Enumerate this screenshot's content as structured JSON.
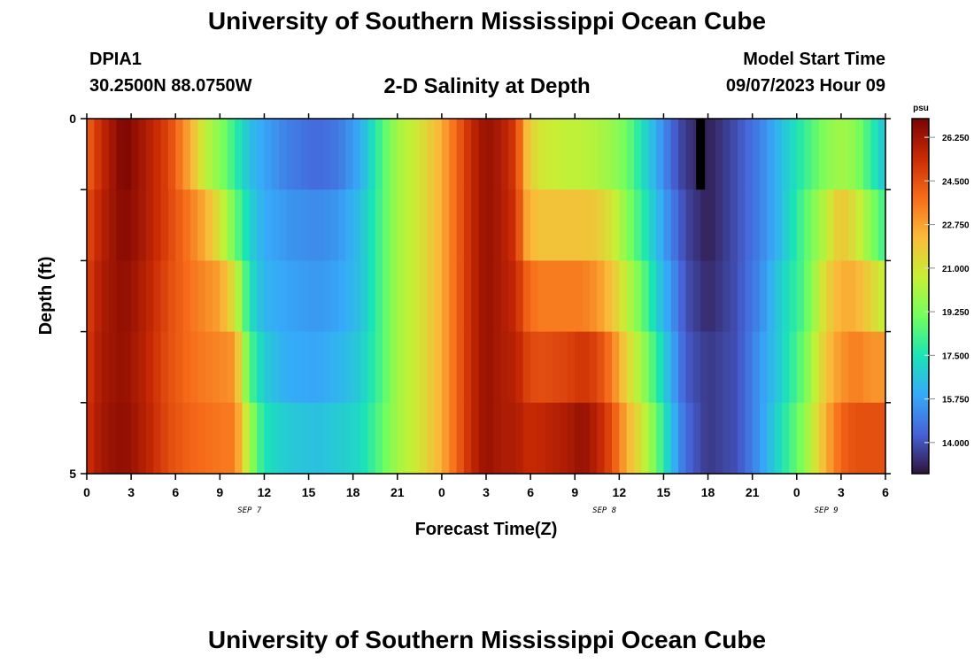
{
  "header": {
    "title": "University of Southern Mississippi Ocean Cube",
    "station_id": "DPIA1",
    "station_coords": "30.2500N  88.0750W",
    "chart_title": "2-D Salinity at Depth",
    "model_start_label": "Model Start Time",
    "model_start_value": "09/07/2023 Hour 09"
  },
  "footer": {
    "title": "University of Southern Mississippi Ocean Cube"
  },
  "chart_data": {
    "type": "heatmap",
    "title": "2-D Salinity at Depth",
    "xlabel": "Forecast Time(Z)",
    "ylabel": "Depth (ft)",
    "ylim": [
      0,
      5
    ],
    "y_ticks": [
      "0",
      "5"
    ],
    "x_tick_labels": [
      "0",
      "3",
      "6",
      "9",
      "12",
      "15",
      "18",
      "21",
      "0",
      "3",
      "6",
      "9",
      "12",
      "15",
      "18",
      "21",
      "0",
      "3",
      "6"
    ],
    "date_labels": [
      {
        "label": "SEP 7",
        "x_hours": 11
      },
      {
        "label": "SEP 8",
        "x_hours": 35
      },
      {
        "label": "SEP 9",
        "x_hours": 50
      }
    ],
    "x_range_hours": [
      0,
      54
    ],
    "depth_rows": [
      0.5,
      1.5,
      2.5,
      3.5,
      4.5
    ],
    "keyframes": [
      {
        "h": 0,
        "v": [
          24.0,
          24.5,
          24.8,
          25.0,
          25.2
        ]
      },
      {
        "h": 1,
        "v": [
          25.5,
          25.8,
          26.0,
          26.1,
          26.2
        ]
      },
      {
        "h": 2.5,
        "v": [
          27.0,
          26.8,
          26.6,
          26.5,
          26.6
        ]
      },
      {
        "h": 4,
        "v": [
          26.0,
          26.0,
          25.8,
          25.7,
          25.8
        ]
      },
      {
        "h": 5.5,
        "v": [
          24.8,
          24.8,
          24.6,
          24.5,
          24.6
        ]
      },
      {
        "h": 7,
        "v": [
          22.5,
          23.5,
          23.7,
          23.8,
          24.0
        ]
      },
      {
        "h": 8,
        "v": [
          20.5,
          22.5,
          23.2,
          23.5,
          23.8
        ]
      },
      {
        "h": 9,
        "v": [
          19.5,
          21.0,
          22.8,
          23.3,
          23.6
        ]
      },
      {
        "h": 10,
        "v": [
          18.0,
          19.0,
          21.0,
          23.0,
          23.5
        ]
      },
      {
        "h": 11,
        "v": [
          16.5,
          17.0,
          17.5,
          18.5,
          20.0
        ]
      },
      {
        "h": 12,
        "v": [
          15.8,
          16.0,
          16.2,
          16.8,
          17.5
        ]
      },
      {
        "h": 13.5,
        "v": [
          15.0,
          15.5,
          15.8,
          16.0,
          16.8
        ]
      },
      {
        "h": 15.5,
        "v": [
          14.5,
          15.2,
          15.5,
          15.8,
          16.5
        ]
      },
      {
        "h": 17,
        "v": [
          14.8,
          15.5,
          15.8,
          16.2,
          16.8
        ]
      },
      {
        "h": 18.5,
        "v": [
          16.0,
          16.5,
          16.5,
          16.8,
          17.2
        ]
      },
      {
        "h": 20,
        "v": [
          18.5,
          18.5,
          18.5,
          18.5,
          18.8
        ]
      },
      {
        "h": 21,
        "v": [
          20.0,
          20.0,
          20.0,
          20.0,
          20.0
        ]
      },
      {
        "h": 22.5,
        "v": [
          21.0,
          21.0,
          21.0,
          21.0,
          21.0
        ]
      },
      {
        "h": 24,
        "v": [
          22.5,
          22.5,
          22.5,
          22.5,
          22.5
        ]
      },
      {
        "h": 25,
        "v": [
          24.0,
          24.0,
          24.0,
          24.0,
          24.0
        ]
      },
      {
        "h": 26,
        "v": [
          25.5,
          25.5,
          25.5,
          25.5,
          25.5
        ]
      },
      {
        "h": 27,
        "v": [
          26.5,
          26.5,
          26.5,
          26.5,
          26.5
        ]
      },
      {
        "h": 28,
        "v": [
          26.0,
          26.0,
          26.0,
          26.0,
          26.0
        ]
      },
      {
        "h": 29,
        "v": [
          25.0,
          25.2,
          25.5,
          25.8,
          26.0
        ]
      },
      {
        "h": 29.8,
        "v": [
          22.0,
          22.5,
          24.0,
          24.8,
          25.5
        ]
      },
      {
        "h": 30.5,
        "v": [
          21.0,
          22.0,
          23.5,
          24.5,
          25.5
        ]
      },
      {
        "h": 32.5,
        "v": [
          20.5,
          22.0,
          23.5,
          24.8,
          26.0
        ]
      },
      {
        "h": 33.5,
        "v": [
          20.5,
          22.0,
          23.5,
          25.2,
          26.5
        ]
      },
      {
        "h": 34.5,
        "v": [
          20.2,
          21.8,
          23.0,
          24.8,
          25.8
        ]
      },
      {
        "h": 35.5,
        "v": [
          19.8,
          21.0,
          22.0,
          23.5,
          24.5
        ]
      },
      {
        "h": 36.5,
        "v": [
          19.0,
          19.5,
          20.5,
          21.5,
          22.5
        ]
      },
      {
        "h": 37.5,
        "v": [
          17.5,
          18.0,
          19.0,
          20.0,
          21.0
        ]
      },
      {
        "h": 38.5,
        "v": [
          16.0,
          16.5,
          17.0,
          18.0,
          19.0
        ]
      },
      {
        "h": 39.5,
        "v": [
          14.5,
          15.0,
          15.5,
          16.0,
          16.5
        ]
      },
      {
        "h": 40.5,
        "v": [
          13.5,
          13.8,
          14.0,
          14.2,
          14.5
        ]
      },
      {
        "h": 42,
        "v": [
          13.0,
          13.0,
          13.2,
          13.5,
          13.5
        ]
      },
      {
        "h": 44,
        "v": [
          14.0,
          14.0,
          14.0,
          14.0,
          14.0
        ]
      },
      {
        "h": 45.5,
        "v": [
          15.0,
          15.0,
          15.2,
          15.5,
          15.5
        ]
      },
      {
        "h": 47,
        "v": [
          16.5,
          16.5,
          17.0,
          17.0,
          17.5
        ]
      },
      {
        "h": 48.5,
        "v": [
          18.0,
          18.5,
          18.5,
          19.0,
          19.5
        ]
      },
      {
        "h": 50,
        "v": [
          19.5,
          20.5,
          21.5,
          22.0,
          22.5
        ]
      },
      {
        "h": 51,
        "v": [
          20.0,
          22.0,
          22.5,
          23.0,
          24.0
        ]
      },
      {
        "h": 52,
        "v": [
          19.5,
          21.0,
          22.5,
          23.5,
          24.5
        ]
      },
      {
        "h": 53,
        "v": [
          18.0,
          19.5,
          21.5,
          23.0,
          24.5
        ]
      },
      {
        "h": 54,
        "v": [
          16.5,
          18.0,
          20.5,
          23.0,
          24.5
        ]
      }
    ],
    "no_data": {
      "depth_row": 0,
      "h_from": 41.2,
      "h_to": 41.8
    },
    "colorbar": {
      "unit": "psu",
      "min": 12.75,
      "max": 27.0,
      "ticks": [
        "26.250",
        "24.500",
        "22.750",
        "21.000",
        "19.250",
        "17.500",
        "15.750",
        "14.000"
      ],
      "colors": [
        "#30123b",
        "#4662d7",
        "#36aaf9",
        "#1ae4b6",
        "#72fe5e",
        "#c8ef34",
        "#faba39",
        "#f66b19",
        "#ca2a04",
        "#7a0403"
      ]
    }
  }
}
